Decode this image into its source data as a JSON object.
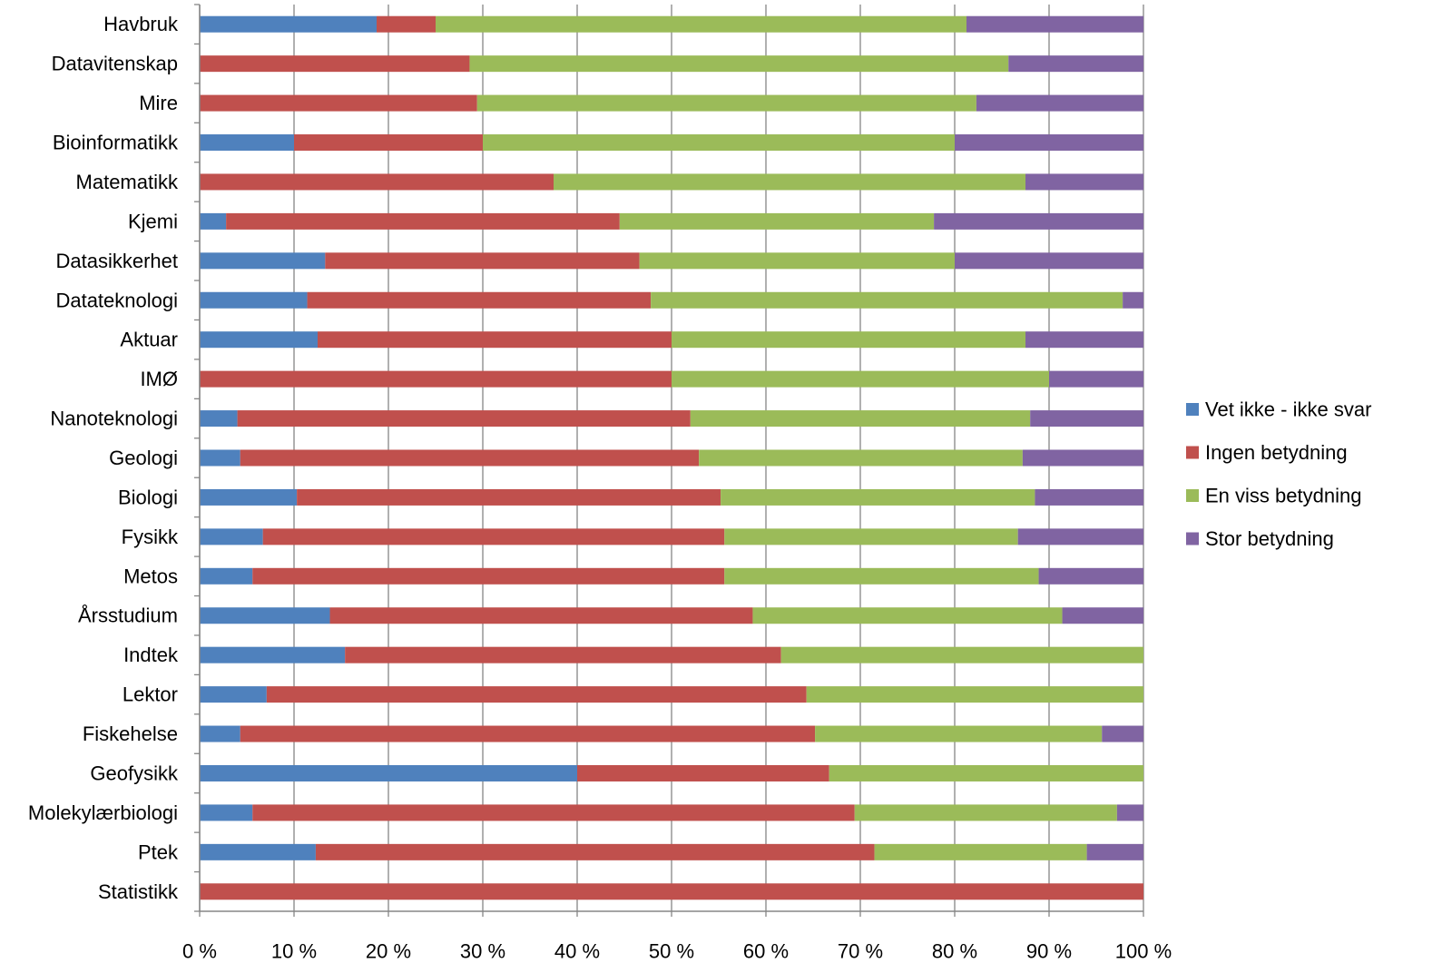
{
  "chart_data": {
    "type": "bar",
    "orientation": "horizontal",
    "stacked": "percent",
    "categories": [
      "Havbruk",
      "Datavitenskap",
      "Mire",
      "Bioinformatikk",
      "Matematikk",
      "Kjemi",
      "Datasikkerhet",
      "Datateknologi",
      "Aktuar",
      "IMØ",
      "Nanoteknologi",
      "Geologi",
      "Biologi",
      "Fysikk",
      "Metos",
      "Årsstudium",
      "Indtek",
      "Lektor",
      "Fiskehelse",
      "Geofysikk",
      "Molekylærbiologi",
      "Ptek",
      "Statistikk"
    ],
    "series": [
      {
        "name": "Vet ikke - ikke svar",
        "color": "#4F81BD",
        "values": [
          18.75,
          0,
          0,
          10,
          0,
          2.8,
          13.3,
          11.4,
          12.5,
          0,
          4.0,
          4.3,
          10.3,
          6.7,
          5.6,
          13.8,
          15.4,
          7.1,
          4.3,
          40.0,
          5.6,
          12.3,
          0
        ]
      },
      {
        "name": "Ingen betydning",
        "color": "#C0504D",
        "values": [
          6.25,
          28.6,
          29.4,
          20,
          37.5,
          41.7,
          33.3,
          36.4,
          37.5,
          50.0,
          48.0,
          48.6,
          44.9,
          48.9,
          50.0,
          44.8,
          46.2,
          57.2,
          60.9,
          26.7,
          63.8,
          59.2,
          100
        ]
      },
      {
        "name": "En viss betydning",
        "color": "#9BBB59",
        "values": [
          56.25,
          57.1,
          52.9,
          50,
          50.0,
          33.3,
          33.4,
          50.0,
          37.5,
          40.0,
          36.0,
          34.3,
          33.3,
          31.1,
          33.3,
          32.8,
          38.4,
          35.7,
          30.4,
          33.3,
          27.8,
          22.5,
          0
        ]
      },
      {
        "name": "Stor betydning",
        "color": "#8064A2",
        "values": [
          18.75,
          14.3,
          17.7,
          20,
          12.5,
          22.2,
          20.0,
          2.2,
          12.5,
          10.0,
          12.0,
          12.8,
          11.5,
          13.3,
          11.1,
          8.6,
          0,
          0,
          4.4,
          0,
          2.8,
          6.0,
          0
        ]
      }
    ],
    "xlim": [
      0,
      100
    ],
    "x_ticks": [
      "0 %",
      "10 %",
      "20 %",
      "30 %",
      "40 %",
      "50 %",
      "60 %",
      "70 %",
      "80 %",
      "90 %",
      "100 %"
    ],
    "grid": true,
    "gridline_color": "#868686",
    "legend_position": "right"
  }
}
